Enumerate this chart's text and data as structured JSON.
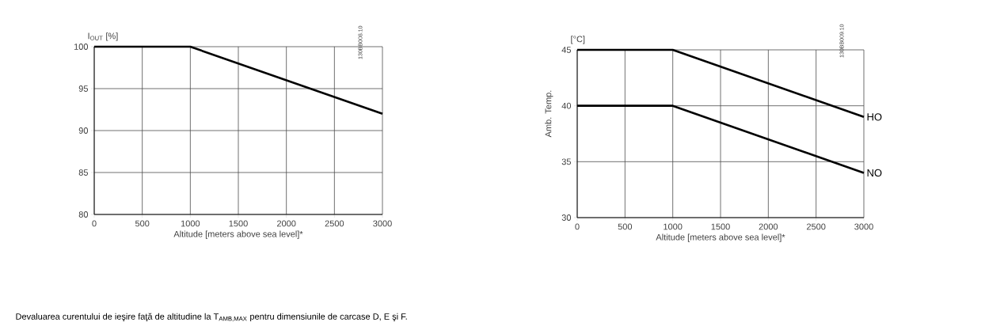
{
  "chart_data": [
    {
      "type": "line",
      "ylabel": "I$_{OUT}$ [%]",
      "xlabel": "Altitude [meters above sea level]*",
      "x": [
        0,
        1000,
        3000
      ],
      "series": [
        {
          "color": "#000000",
          "values": [
            100,
            100,
            92
          ]
        }
      ],
      "xlim": [
        0,
        3000
      ],
      "xticks": [
        0,
        500,
        1000,
        1500,
        2000,
        2500,
        3000
      ],
      "ylim": [
        80,
        100
      ],
      "yticks": [
        80,
        85,
        90,
        95,
        100
      ],
      "grid": true,
      "legend": false,
      "marker": "none",
      "line_style": "solid",
      "annotations": [
        "130BB008.10",
        "Devaluarea curentului de ieşire faţă de altitudine la T$_{AMB,MAX}$ pentru dimensiunile de carcase D, E şi F."
      ]
    },
    {
      "type": "line",
      "title": "[°C]",
      "ylabel": "Amb. Temp.",
      "xlabel": "Altitude [meters above sea level]*",
      "x": [
        0,
        1000,
        3000
      ],
      "series": [
        {
          "name": "HO",
          "color": "#000000",
          "values": [
            45,
            45,
            39
          ]
        },
        {
          "name": "NO",
          "color": "#000000",
          "values": [
            40,
            40,
            34
          ]
        }
      ],
      "xlim": [
        0,
        3000
      ],
      "xticks": [
        0,
        500,
        1000,
        1500,
        2000,
        2500,
        3000
      ],
      "ylim": [
        30,
        45
      ],
      "yticks": [
        30,
        35,
        40,
        45
      ],
      "grid": true,
      "legend": false,
      "marker": "none",
      "line_style": "solid",
      "annotations": [
        "130BB009.10"
      ]
    }
  ]
}
